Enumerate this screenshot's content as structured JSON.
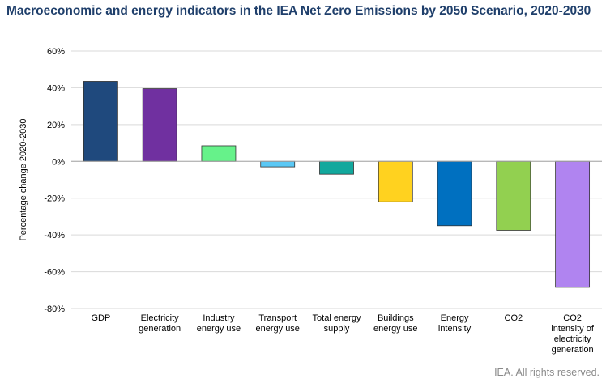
{
  "chart_data": {
    "type": "bar",
    "title": "Macroeconomic and energy indicators in the IEA Net Zero Emissions by 2050 Scenario, 2020-2030",
    "ylabel": "Percentage change 2020-2030",
    "xlabel": "",
    "ylim": [
      -80,
      60
    ],
    "yticks": [
      60,
      40,
      20,
      0,
      -20,
      -40,
      -60,
      -80
    ],
    "ytick_labels": [
      "60%",
      "40%",
      "20%",
      "0%",
      "-20%",
      "-40%",
      "-60%",
      "-80%"
    ],
    "grid": true,
    "legend": "none",
    "categories": [
      [
        "GDP"
      ],
      [
        "Electricity",
        "generation"
      ],
      [
        "Industry",
        "energy use"
      ],
      [
        "Transport",
        "energy use"
      ],
      [
        "Total energy",
        "supply"
      ],
      [
        "Buildings",
        "energy use"
      ],
      [
        "Energy",
        "intensity"
      ],
      [
        "CO2"
      ],
      [
        "CO2",
        "intensity of",
        "electricity",
        "generation"
      ]
    ],
    "values": [
      43.5,
      39.5,
      8.5,
      -3,
      -7,
      -22,
      -35,
      -37.5,
      -68.5
    ],
    "colors": [
      "#1f497d",
      "#7030a0",
      "#66f28a",
      "#5bc8f5",
      "#12a89d",
      "#ffd21f",
      "#0070c0",
      "#92d050",
      "#b084f0"
    ]
  },
  "footer": {
    "source": "IEA. All rights reserved."
  }
}
